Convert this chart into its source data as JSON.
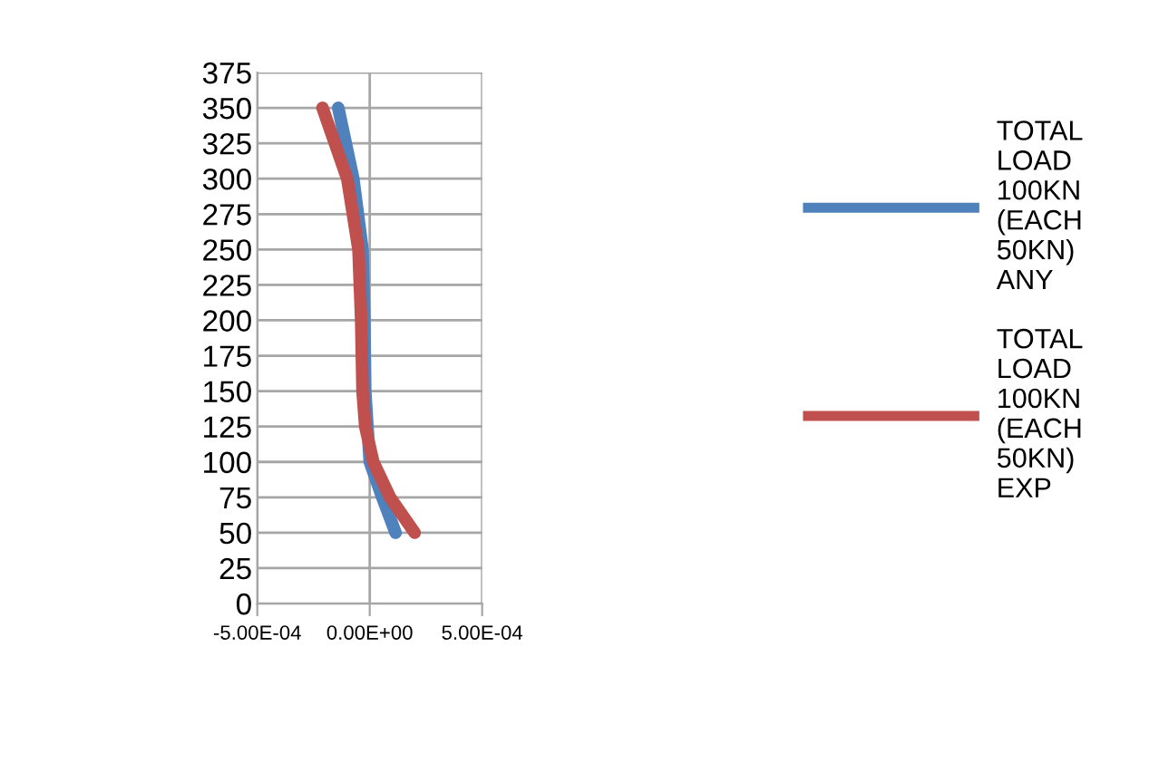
{
  "chart_data": {
    "type": "line",
    "series": [
      {
        "name": "TOTAL LOAD 100KN (EACH 50KN) ANY",
        "color": "#4f81bd",
        "x": [
          -0.00014,
          -7.3e-05,
          -3.2e-05,
          -2.4e-05,
          -2e-05,
          -1e-05,
          3e-07,
          5.6e-05,
          0.000115
        ],
        "values": [
          350,
          300,
          250,
          200,
          150,
          125,
          100,
          75,
          50
        ]
      },
      {
        "name": "TOTAL LOAD 100KN (EACH 50KN) EXP",
        "color": "#c0504d",
        "x": [
          -0.00021,
          -0.0001,
          -5e-05,
          -3.8e-05,
          -3.2e-05,
          -2e-05,
          1.6e-05,
          9e-05,
          0.0002
        ],
        "values": [
          350,
          300,
          250,
          200,
          150,
          125,
          100,
          75,
          50
        ]
      }
    ],
    "xlim": [
      -0.0005,
      0.0005
    ],
    "xticks": [
      {
        "value": -0.0005,
        "label": "-5.00E-04"
      },
      {
        "value": 0,
        "label": "0.00E+00"
      },
      {
        "value": 0.0005,
        "label": "5.00E-04"
      }
    ],
    "ylim": [
      0,
      375
    ],
    "yticks": [
      0,
      25,
      50,
      75,
      100,
      125,
      150,
      175,
      200,
      225,
      250,
      275,
      300,
      325,
      350,
      375
    ],
    "grid": true,
    "legend": "right",
    "marker": "none",
    "line_style": "solid"
  }
}
